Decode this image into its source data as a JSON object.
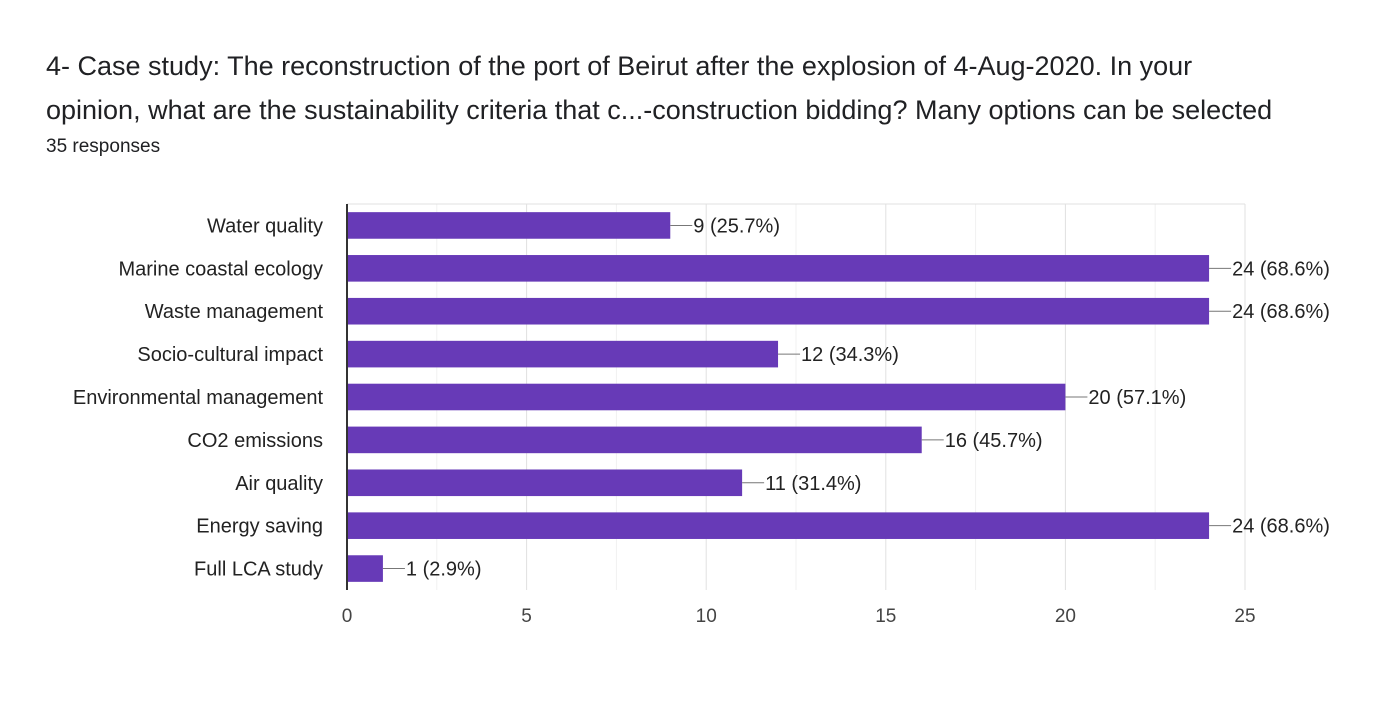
{
  "header": {
    "title_line1": "4- Case study: The reconstruction of the port of Beirut after the explosion of 4-Aug-2020. In your",
    "title_line2": "opinion, what are the sustainability criteria that c...-construction bidding? Many options can be selected",
    "responses": "35 responses"
  },
  "chart_data": {
    "type": "bar",
    "orientation": "horizontal",
    "categories": [
      "Water quality",
      "Marine coastal ecology",
      "Waste management",
      "Socio-cultural impact",
      "Environmental management",
      "CO2 emissions",
      "Air quality",
      "Energy saving",
      "Full LCA study"
    ],
    "values": [
      9,
      24,
      24,
      12,
      20,
      16,
      11,
      24,
      1
    ],
    "data_labels": [
      "9 (25.7%)",
      "24 (68.6%)",
      "24 (68.6%)",
      "12 (34.3%)",
      "20 (57.1%)",
      "16 (45.7%)",
      "11 (31.4%)",
      "24 (68.6%)",
      "1 (2.9%)"
    ],
    "xlim": [
      0,
      25
    ],
    "xticks": [
      0,
      5,
      10,
      15,
      20,
      25
    ],
    "grid": true,
    "bar_color": "#673ab7"
  }
}
